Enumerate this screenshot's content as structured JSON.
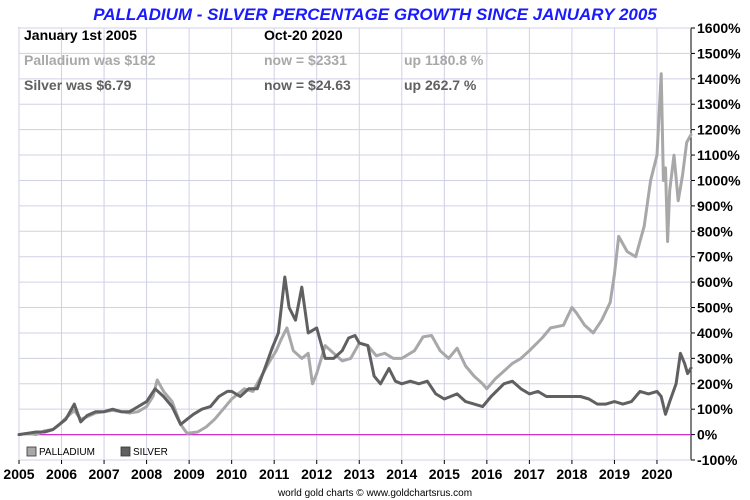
{
  "chart_data": {
    "type": "line",
    "title": "PALLADIUM - SILVER PERCENTAGE GROWTH SINCE JANUARY 2005",
    "xlabel": "",
    "ylabel": "",
    "x_ticks": [
      "2005",
      "2006",
      "2007",
      "2008",
      "2009",
      "2010",
      "2011",
      "2012",
      "2013",
      "2014",
      "2015",
      "2016",
      "2017",
      "2018",
      "2019",
      "2020"
    ],
    "y_ticks": [
      "-100%",
      "0%",
      "100%",
      "200%",
      "300%",
      "400%",
      "500%",
      "600%",
      "700%",
      "800%",
      "900%",
      "1000%",
      "1100%",
      "1200%",
      "1300%",
      "1400%",
      "1500%",
      "1600%"
    ],
    "xlim": [
      2005,
      2020.8
    ],
    "ylim": [
      -100,
      1600
    ],
    "grid": true,
    "zero_line_color": "#cc33cc",
    "legend_position": "bottom-left",
    "info": {
      "start_label": "January 1st 2005",
      "end_label": "Oct-20  2020",
      "palladium_start": "Palladium was $182",
      "palladium_now": "now = $2331",
      "palladium_up": "up 1180.8 %",
      "silver_start": "Silver was $6.79",
      "silver_now": "now = $24.63",
      "silver_up": "up 262.7 %"
    },
    "series": [
      {
        "name": "PALLADIUM",
        "color": "#a8a8a8",
        "points": [
          [
            2005.0,
            0
          ],
          [
            2005.2,
            5
          ],
          [
            2005.4,
            0
          ],
          [
            2005.6,
            15
          ],
          [
            2005.8,
            20
          ],
          [
            2005.95,
            40
          ],
          [
            2006.1,
            65
          ],
          [
            2006.3,
            95
          ],
          [
            2006.45,
            60
          ],
          [
            2006.6,
            70
          ],
          [
            2006.8,
            85
          ],
          [
            2007.0,
            90
          ],
          [
            2007.2,
            95
          ],
          [
            2007.4,
            90
          ],
          [
            2007.6,
            85
          ],
          [
            2007.8,
            90
          ],
          [
            2008.0,
            110
          ],
          [
            2008.15,
            150
          ],
          [
            2008.25,
            215
          ],
          [
            2008.4,
            170
          ],
          [
            2008.6,
            130
          ],
          [
            2008.8,
            40
          ],
          [
            2008.95,
            5
          ],
          [
            2009.2,
            10
          ],
          [
            2009.4,
            30
          ],
          [
            2009.6,
            60
          ],
          [
            2009.8,
            100
          ],
          [
            2010.0,
            140
          ],
          [
            2010.3,
            180
          ],
          [
            2010.5,
            170
          ],
          [
            2010.7,
            230
          ],
          [
            2010.9,
            290
          ],
          [
            2011.05,
            330
          ],
          [
            2011.15,
            370
          ],
          [
            2011.3,
            420
          ],
          [
            2011.45,
            330
          ],
          [
            2011.65,
            300
          ],
          [
            2011.8,
            320
          ],
          [
            2011.9,
            200
          ],
          [
            2012.0,
            240
          ],
          [
            2012.2,
            350
          ],
          [
            2012.4,
            320
          ],
          [
            2012.6,
            290
          ],
          [
            2012.8,
            300
          ],
          [
            2013.0,
            360
          ],
          [
            2013.2,
            350
          ],
          [
            2013.4,
            310
          ],
          [
            2013.6,
            320
          ],
          [
            2013.8,
            300
          ],
          [
            2014.0,
            300
          ],
          [
            2014.3,
            330
          ],
          [
            2014.5,
            385
          ],
          [
            2014.7,
            390
          ],
          [
            2014.9,
            330
          ],
          [
            2015.1,
            300
          ],
          [
            2015.3,
            340
          ],
          [
            2015.5,
            270
          ],
          [
            2015.7,
            230
          ],
          [
            2015.9,
            200
          ],
          [
            2016.0,
            180
          ],
          [
            2016.2,
            220
          ],
          [
            2016.4,
            250
          ],
          [
            2016.6,
            280
          ],
          [
            2016.8,
            300
          ],
          [
            2017.0,
            330
          ],
          [
            2017.3,
            380
          ],
          [
            2017.5,
            420
          ],
          [
            2017.8,
            430
          ],
          [
            2018.0,
            500
          ],
          [
            2018.1,
            480
          ],
          [
            2018.3,
            430
          ],
          [
            2018.5,
            400
          ],
          [
            2018.7,
            450
          ],
          [
            2018.9,
            520
          ],
          [
            2019.0,
            630
          ],
          [
            2019.1,
            780
          ],
          [
            2019.3,
            720
          ],
          [
            2019.5,
            700
          ],
          [
            2019.7,
            820
          ],
          [
            2019.85,
            1000
          ],
          [
            2020.0,
            1100
          ],
          [
            2020.1,
            1420
          ],
          [
            2020.15,
            1000
          ],
          [
            2020.2,
            1050
          ],
          [
            2020.25,
            760
          ],
          [
            2020.3,
            960
          ],
          [
            2020.4,
            1100
          ],
          [
            2020.5,
            920
          ],
          [
            2020.6,
            1020
          ],
          [
            2020.7,
            1150
          ],
          [
            2020.8,
            1180
          ]
        ]
      },
      {
        "name": "SILVER",
        "color": "#606060",
        "points": [
          [
            2005.0,
            0
          ],
          [
            2005.2,
            5
          ],
          [
            2005.4,
            10
          ],
          [
            2005.6,
            10
          ],
          [
            2005.8,
            20
          ],
          [
            2005.95,
            40
          ],
          [
            2006.1,
            60
          ],
          [
            2006.3,
            120
          ],
          [
            2006.45,
            50
          ],
          [
            2006.6,
            75
          ],
          [
            2006.8,
            90
          ],
          [
            2007.0,
            90
          ],
          [
            2007.2,
            100
          ],
          [
            2007.4,
            90
          ],
          [
            2007.6,
            90
          ],
          [
            2007.8,
            110
          ],
          [
            2008.0,
            130
          ],
          [
            2008.2,
            180
          ],
          [
            2008.4,
            150
          ],
          [
            2008.6,
            110
          ],
          [
            2008.8,
            40
          ],
          [
            2008.95,
            60
          ],
          [
            2009.1,
            80
          ],
          [
            2009.3,
            100
          ],
          [
            2009.5,
            110
          ],
          [
            2009.7,
            150
          ],
          [
            2009.9,
            170
          ],
          [
            2010.0,
            170
          ],
          [
            2010.2,
            150
          ],
          [
            2010.4,
            180
          ],
          [
            2010.6,
            180
          ],
          [
            2010.8,
            270
          ],
          [
            2010.95,
            340
          ],
          [
            2011.1,
            400
          ],
          [
            2011.25,
            620
          ],
          [
            2011.35,
            500
          ],
          [
            2011.5,
            450
          ],
          [
            2011.65,
            580
          ],
          [
            2011.8,
            400
          ],
          [
            2012.0,
            420
          ],
          [
            2012.2,
            300
          ],
          [
            2012.4,
            300
          ],
          [
            2012.6,
            330
          ],
          [
            2012.75,
            380
          ],
          [
            2012.9,
            390
          ],
          [
            2013.0,
            360
          ],
          [
            2013.2,
            350
          ],
          [
            2013.35,
            230
          ],
          [
            2013.5,
            200
          ],
          [
            2013.7,
            260
          ],
          [
            2013.85,
            210
          ],
          [
            2014.0,
            200
          ],
          [
            2014.2,
            210
          ],
          [
            2014.4,
            200
          ],
          [
            2014.6,
            210
          ],
          [
            2014.8,
            160
          ],
          [
            2015.0,
            140
          ],
          [
            2015.3,
            160
          ],
          [
            2015.5,
            130
          ],
          [
            2015.7,
            120
          ],
          [
            2015.9,
            110
          ],
          [
            2016.1,
            150
          ],
          [
            2016.4,
            200
          ],
          [
            2016.6,
            210
          ],
          [
            2016.8,
            180
          ],
          [
            2017.0,
            160
          ],
          [
            2017.2,
            170
          ],
          [
            2017.4,
            150
          ],
          [
            2017.6,
            150
          ],
          [
            2017.8,
            150
          ],
          [
            2018.0,
            150
          ],
          [
            2018.2,
            150
          ],
          [
            2018.4,
            140
          ],
          [
            2018.6,
            120
          ],
          [
            2018.8,
            120
          ],
          [
            2019.0,
            130
          ],
          [
            2019.2,
            120
          ],
          [
            2019.4,
            130
          ],
          [
            2019.6,
            170
          ],
          [
            2019.8,
            160
          ],
          [
            2020.0,
            170
          ],
          [
            2020.1,
            150
          ],
          [
            2020.2,
            80
          ],
          [
            2020.3,
            130
          ],
          [
            2020.45,
            200
          ],
          [
            2020.55,
            320
          ],
          [
            2020.65,
            280
          ],
          [
            2020.72,
            240
          ],
          [
            2020.8,
            262
          ]
        ]
      }
    ]
  },
  "footer": "world gold charts © www.goldchartsrus.com"
}
